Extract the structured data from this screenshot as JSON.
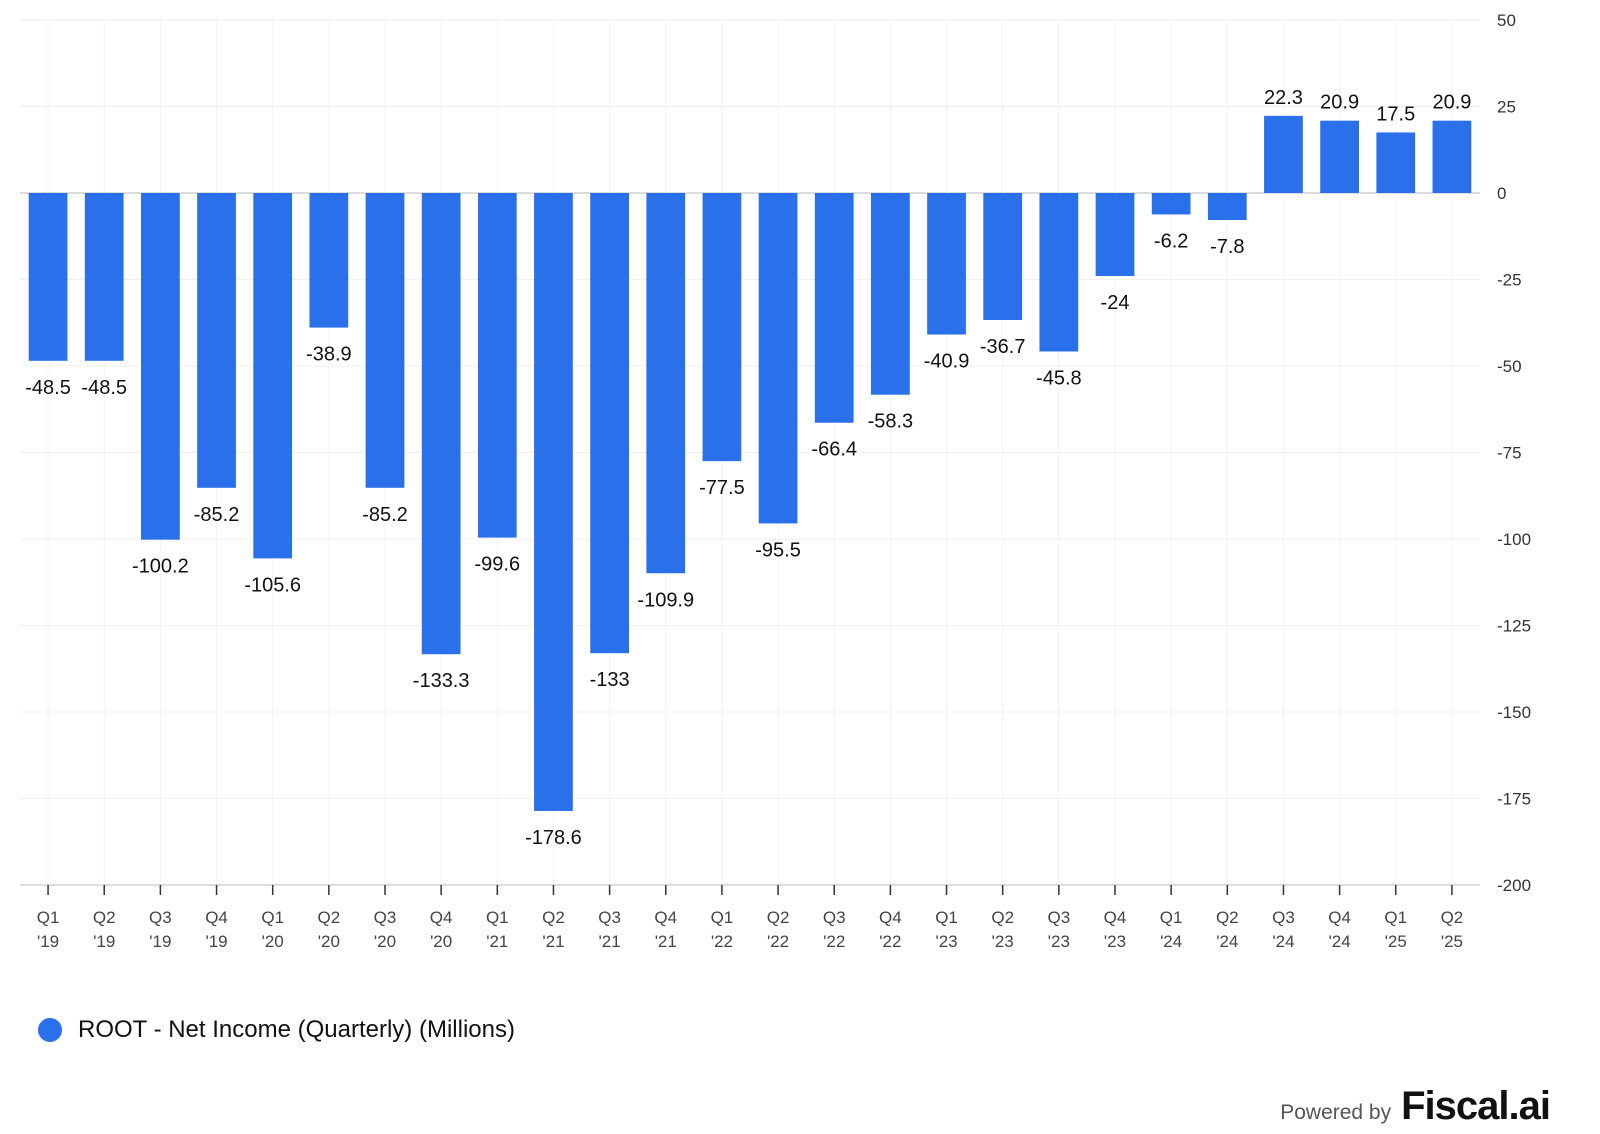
{
  "chart_data": {
    "type": "bar",
    "categories": [
      [
        "Q1",
        "'19"
      ],
      [
        "Q2",
        "'19"
      ],
      [
        "Q3",
        "'19"
      ],
      [
        "Q4",
        "'19"
      ],
      [
        "Q1",
        "'20"
      ],
      [
        "Q2",
        "'20"
      ],
      [
        "Q3",
        "'20"
      ],
      [
        "Q4",
        "'20"
      ],
      [
        "Q1",
        "'21"
      ],
      [
        "Q2",
        "'21"
      ],
      [
        "Q3",
        "'21"
      ],
      [
        "Q4",
        "'21"
      ],
      [
        "Q1",
        "'22"
      ],
      [
        "Q2",
        "'22"
      ],
      [
        "Q3",
        "'22"
      ],
      [
        "Q4",
        "'22"
      ],
      [
        "Q1",
        "'23"
      ],
      [
        "Q2",
        "'23"
      ],
      [
        "Q3",
        "'23"
      ],
      [
        "Q4",
        "'23"
      ],
      [
        "Q1",
        "'24"
      ],
      [
        "Q2",
        "'24"
      ],
      [
        "Q3",
        "'24"
      ],
      [
        "Q4",
        "'24"
      ],
      [
        "Q1",
        "'25"
      ],
      [
        "Q2",
        "'25"
      ]
    ],
    "series": [
      {
        "name": "ROOT - Net Income (Quarterly) (Millions)",
        "color": "#2970ea",
        "values": [
          -48.5,
          -48.5,
          -100.2,
          -85.2,
          -105.6,
          -38.9,
          -85.2,
          -133.3,
          -99.6,
          -178.6,
          -133,
          -109.9,
          -77.5,
          -95.5,
          -66.4,
          -58.3,
          -40.9,
          -36.7,
          -45.8,
          -24,
          -6.2,
          -7.8,
          22.3,
          20.9,
          17.5,
          20.9
        ]
      }
    ],
    "ylim": [
      -200,
      50
    ],
    "yticks": [
      50,
      25,
      0,
      -25,
      -50,
      -75,
      -100,
      -125,
      -150,
      -175,
      -200
    ],
    "y_axis_side": "right",
    "grid": true,
    "legend_position": "bottom-left"
  },
  "legend": {
    "label": "ROOT - Net Income (Quarterly) (Millions)",
    "color": "#2970ea"
  },
  "credit": {
    "prefix": "Powered by",
    "brand": "Fiscal.ai"
  }
}
